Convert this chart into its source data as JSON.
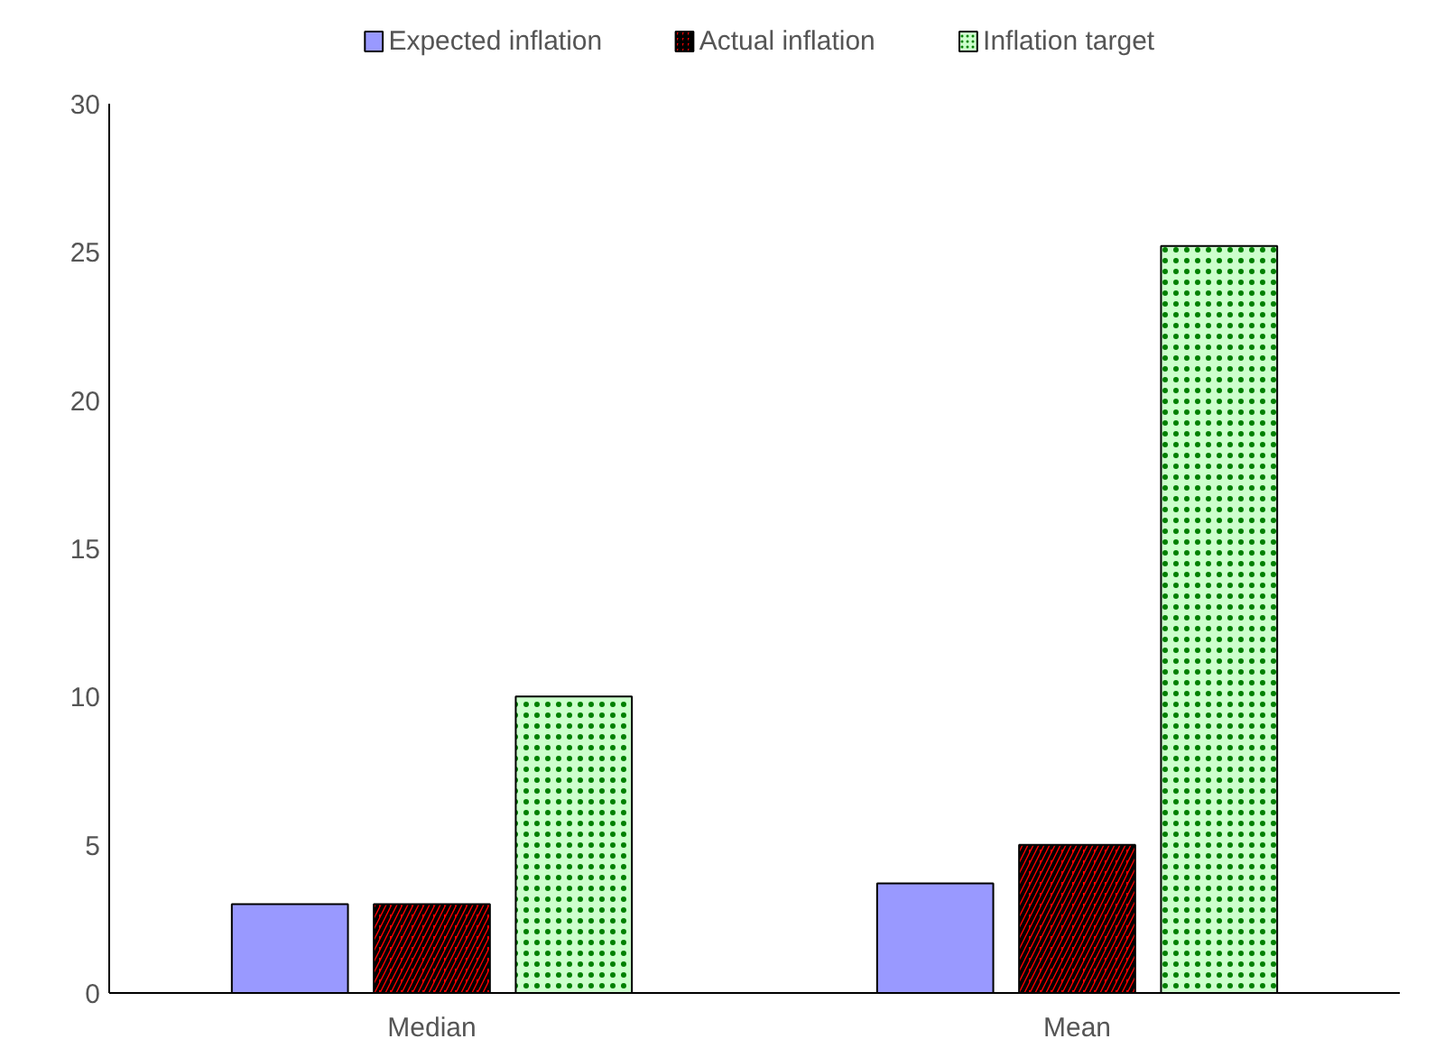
{
  "chart_data": {
    "type": "bar",
    "categories": [
      "Median",
      "Mean"
    ],
    "series": [
      {
        "name": "Expected inflation",
        "color": "#9999ff",
        "values": [
          3,
          3.7
        ]
      },
      {
        "name": "Actual inflation",
        "color": "#ff0000",
        "values": [
          3,
          5
        ]
      },
      {
        "name": "Inflation target",
        "color": "#ccffcc",
        "values": [
          10,
          25.2
        ]
      }
    ],
    "ylim": [
      0,
      30
    ],
    "yticks": [
      0,
      5,
      10,
      15,
      20,
      25,
      30
    ],
    "grid": false,
    "legend": "top"
  }
}
